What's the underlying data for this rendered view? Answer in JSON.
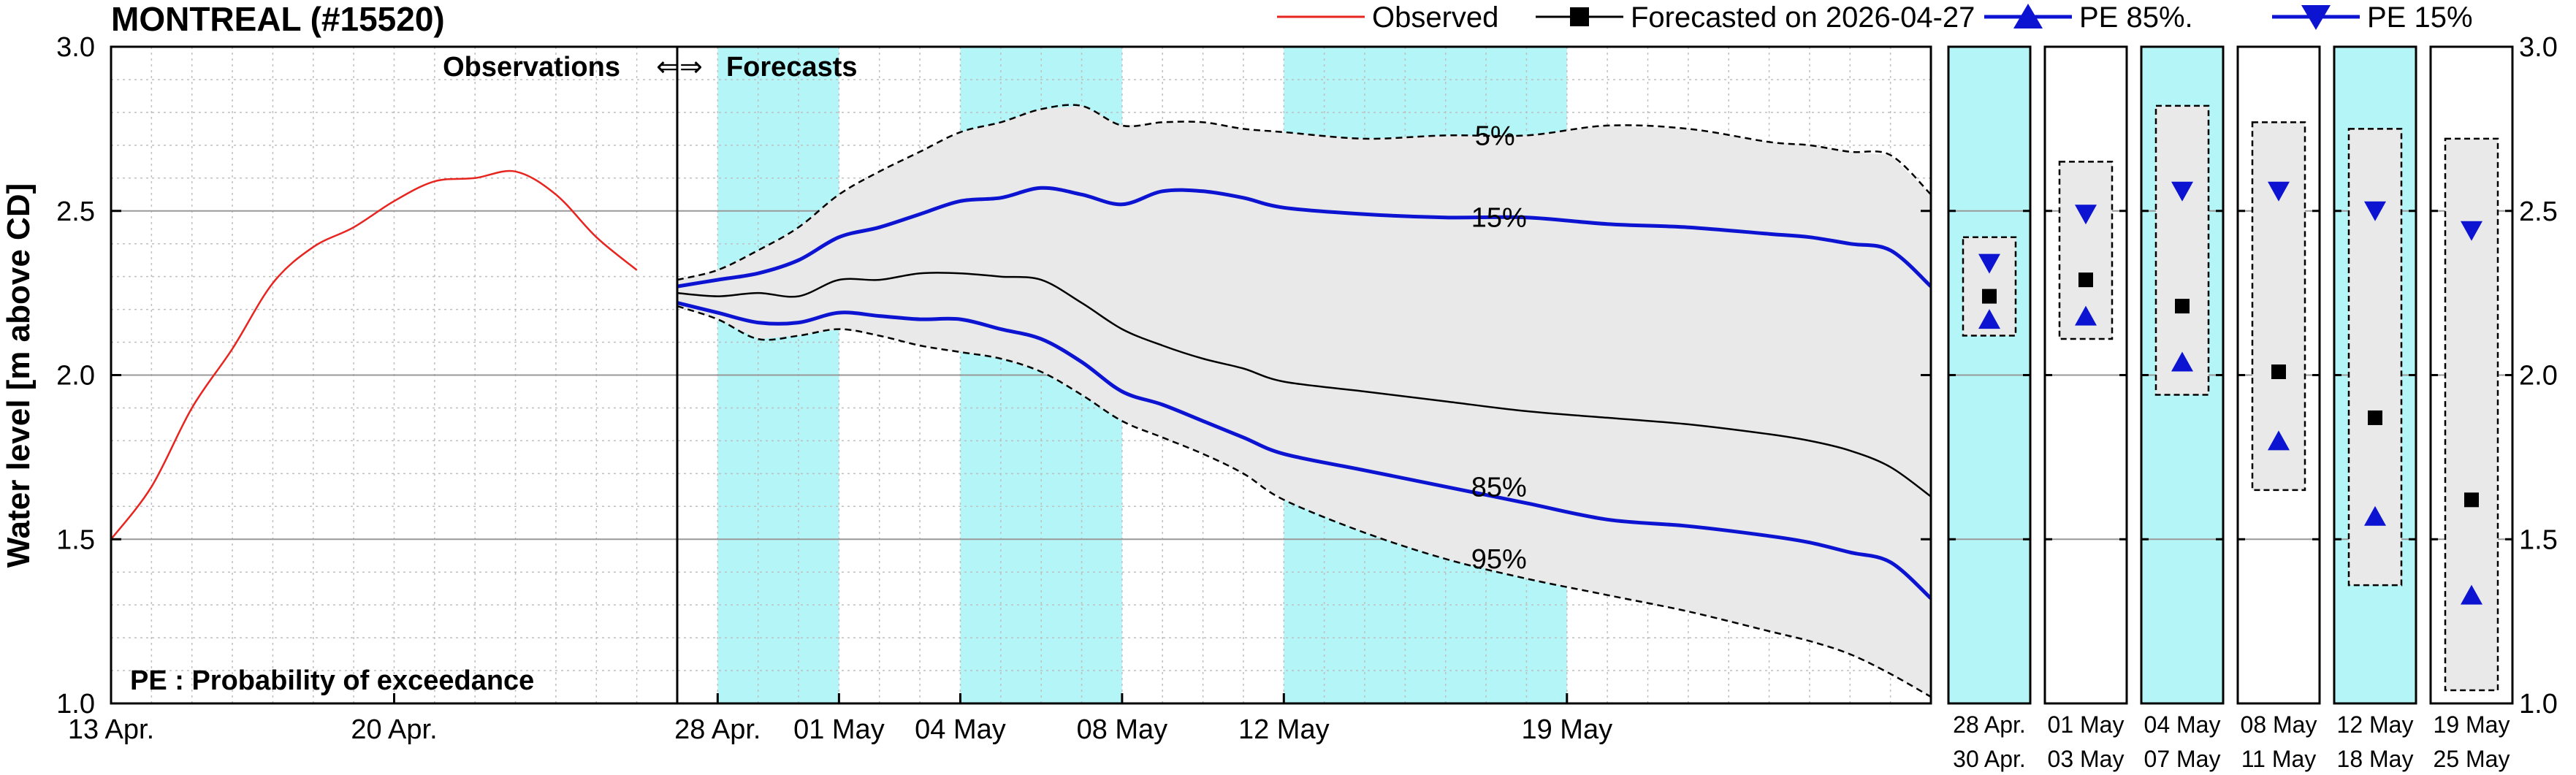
{
  "chart_data": {
    "type": "line",
    "title": "MONTREAL (#15520)",
    "ylabel": "Water level [m above CD]",
    "ylim": [
      1.0,
      3.0
    ],
    "yticks": [
      "1.0",
      "1.5",
      "2.0",
      "2.5",
      "3.0"
    ],
    "xlim": [
      "2026-04-13",
      "2026-05-28"
    ],
    "obs_xticks": [
      {
        "date": "2026-04-13",
        "label": "13 Apr."
      },
      {
        "date": "2026-04-20",
        "label": "20 Apr."
      }
    ],
    "fc_xticks": [
      {
        "date": "2026-04-28",
        "label": "28 Apr."
      },
      {
        "date": "2026-05-01",
        "label": "01 May"
      },
      {
        "date": "2026-05-04",
        "label": "04 May"
      },
      {
        "date": "2026-05-08",
        "label": "08 May"
      },
      {
        "date": "2026-05-12",
        "label": "12 May"
      },
      {
        "date": "2026-05-19",
        "label": "19 May"
      }
    ],
    "divider_date": "2026-04-27",
    "divider_label_left": "Observations",
    "divider_arrows": "⇐⇒",
    "divider_label_right": "Forecasts",
    "note": "PE : Probability of exceedance",
    "shaded_periods": [
      [
        "2026-04-28",
        "2026-04-30"
      ],
      [
        "2026-05-04",
        "2026-05-07"
      ],
      [
        "2026-05-12",
        "2026-05-18"
      ]
    ],
    "legend": [
      {
        "label": "Observed",
        "color": "#e8241f",
        "marker": "none"
      },
      {
        "label": "Forecasted on 2026-04-27",
        "color": "#000000",
        "marker": "square"
      },
      {
        "label": "PE 85%.",
        "color": "#0c14d2",
        "marker": "triangle-up"
      },
      {
        "label": "PE 15%",
        "color": "#0c14d2",
        "marker": "triangle-down"
      }
    ],
    "series": [
      {
        "name": "Observed",
        "color": "#e8241f",
        "x": [
          "2026-04-13",
          "2026-04-14",
          "2026-04-15",
          "2026-04-16",
          "2026-04-17",
          "2026-04-18",
          "2026-04-19",
          "2026-04-20",
          "2026-04-21",
          "2026-04-22",
          "2026-04-23",
          "2026-04-24",
          "2026-04-25",
          "2026-04-26"
        ],
        "y": [
          1.5,
          1.66,
          1.9,
          2.08,
          2.28,
          2.39,
          2.45,
          2.53,
          2.59,
          2.6,
          2.62,
          2.55,
          2.42,
          2.32
        ]
      },
      {
        "name": "Forecasted on 2026-04-27",
        "color": "#000000",
        "x": [
          "2026-04-27",
          "2026-04-28",
          "2026-04-29",
          "2026-04-30",
          "2026-05-01",
          "2026-05-02",
          "2026-05-03",
          "2026-05-04",
          "2026-05-05",
          "2026-05-06",
          "2026-05-07",
          "2026-05-08",
          "2026-05-09",
          "2026-05-10",
          "2026-05-11",
          "2026-05-12",
          "2026-05-14",
          "2026-05-16",
          "2026-05-18",
          "2026-05-20",
          "2026-05-22",
          "2026-05-24",
          "2026-05-25",
          "2026-05-26",
          "2026-05-27",
          "2026-05-28"
        ],
        "y": [
          2.25,
          2.24,
          2.25,
          2.24,
          2.29,
          2.29,
          2.31,
          2.31,
          2.3,
          2.29,
          2.22,
          2.14,
          2.09,
          2.05,
          2.02,
          1.98,
          1.95,
          1.92,
          1.89,
          1.87,
          1.85,
          1.82,
          1.8,
          1.77,
          1.72,
          1.63
        ]
      },
      {
        "name": "PE 15%",
        "color": "#0c14d2",
        "label": "15%",
        "x": [
          "2026-04-27",
          "2026-04-28",
          "2026-04-29",
          "2026-04-30",
          "2026-05-01",
          "2026-05-02",
          "2026-05-03",
          "2026-05-04",
          "2026-05-05",
          "2026-05-06",
          "2026-05-07",
          "2026-05-08",
          "2026-05-09",
          "2026-05-10",
          "2026-05-11",
          "2026-05-12",
          "2026-05-14",
          "2026-05-16",
          "2026-05-18",
          "2026-05-20",
          "2026-05-22",
          "2026-05-24",
          "2026-05-25",
          "2026-05-26",
          "2026-05-27",
          "2026-05-28"
        ],
        "y": [
          2.27,
          2.29,
          2.31,
          2.35,
          2.42,
          2.45,
          2.49,
          2.53,
          2.54,
          2.57,
          2.55,
          2.52,
          2.56,
          2.56,
          2.54,
          2.51,
          2.49,
          2.48,
          2.48,
          2.46,
          2.45,
          2.43,
          2.42,
          2.4,
          2.38,
          2.27
        ]
      },
      {
        "name": "PE 85%",
        "color": "#0c14d2",
        "label": "85%",
        "x": [
          "2026-04-27",
          "2026-04-28",
          "2026-04-29",
          "2026-04-30",
          "2026-05-01",
          "2026-05-02",
          "2026-05-03",
          "2026-05-04",
          "2026-05-05",
          "2026-05-06",
          "2026-05-07",
          "2026-05-08",
          "2026-05-09",
          "2026-05-10",
          "2026-05-11",
          "2026-05-12",
          "2026-05-14",
          "2026-05-16",
          "2026-05-18",
          "2026-05-20",
          "2026-05-22",
          "2026-05-24",
          "2026-05-25",
          "2026-05-26",
          "2026-05-27",
          "2026-05-28"
        ],
        "y": [
          2.22,
          2.19,
          2.16,
          2.16,
          2.19,
          2.18,
          2.17,
          2.17,
          2.14,
          2.11,
          2.04,
          1.95,
          1.91,
          1.86,
          1.81,
          1.76,
          1.71,
          1.66,
          1.61,
          1.56,
          1.54,
          1.51,
          1.49,
          1.46,
          1.43,
          1.32
        ]
      },
      {
        "name": "PE 5%",
        "color": "#000000",
        "dashed": true,
        "label": "5%",
        "x": [
          "2026-04-27",
          "2026-04-28",
          "2026-04-29",
          "2026-04-30",
          "2026-05-01",
          "2026-05-02",
          "2026-05-03",
          "2026-05-04",
          "2026-05-05",
          "2026-05-06",
          "2026-05-07",
          "2026-05-08",
          "2026-05-09",
          "2026-05-10",
          "2026-05-11",
          "2026-05-12",
          "2026-05-14",
          "2026-05-16",
          "2026-05-18",
          "2026-05-20",
          "2026-05-22",
          "2026-05-24",
          "2026-05-25",
          "2026-05-26",
          "2026-05-27",
          "2026-05-28"
        ],
        "y": [
          2.29,
          2.32,
          2.38,
          2.45,
          2.55,
          2.62,
          2.68,
          2.74,
          2.77,
          2.81,
          2.82,
          2.76,
          2.77,
          2.77,
          2.75,
          2.74,
          2.72,
          2.73,
          2.73,
          2.76,
          2.75,
          2.71,
          2.7,
          2.68,
          2.67,
          2.55
        ]
      },
      {
        "name": "PE 95%",
        "color": "#000000",
        "dashed": true,
        "label": "95%",
        "x": [
          "2026-04-27",
          "2026-04-28",
          "2026-04-29",
          "2026-04-30",
          "2026-05-01",
          "2026-05-02",
          "2026-05-03",
          "2026-05-04",
          "2026-05-05",
          "2026-05-06",
          "2026-05-07",
          "2026-05-08",
          "2026-05-09",
          "2026-05-10",
          "2026-05-11",
          "2026-05-12",
          "2026-05-14",
          "2026-05-16",
          "2026-05-18",
          "2026-05-20",
          "2026-05-22",
          "2026-05-24",
          "2026-05-25",
          "2026-05-26",
          "2026-05-27",
          "2026-05-28"
        ],
        "y": [
          2.21,
          2.17,
          2.11,
          2.12,
          2.14,
          2.12,
          2.09,
          2.07,
          2.05,
          2.01,
          1.94,
          1.86,
          1.81,
          1.76,
          1.7,
          1.62,
          1.52,
          1.44,
          1.38,
          1.33,
          1.28,
          1.22,
          1.19,
          1.15,
          1.09,
          1.02
        ]
      }
    ],
    "weekly_panels": [
      {
        "top": "28  Apr.",
        "bottom": "30  Apr.",
        "shaded": true,
        "pe5": 2.42,
        "pe15": 2.34,
        "forecast": 2.24,
        "pe85": 2.17,
        "pe95": 2.12
      },
      {
        "top": "01  May",
        "bottom": "03  May",
        "shaded": false,
        "pe5": 2.65,
        "pe15": 2.49,
        "forecast": 2.29,
        "pe85": 2.18,
        "pe95": 2.11
      },
      {
        "top": "04  May",
        "bottom": "07  May",
        "shaded": true,
        "pe5": 2.82,
        "pe15": 2.56,
        "forecast": 2.21,
        "pe85": 2.04,
        "pe95": 1.94
      },
      {
        "top": "08  May",
        "bottom": "11  May",
        "shaded": false,
        "pe5": 2.77,
        "pe15": 2.56,
        "forecast": 2.01,
        "pe85": 1.8,
        "pe95": 1.65
      },
      {
        "top": "12  May",
        "bottom": "18  May",
        "shaded": true,
        "pe5": 2.75,
        "pe15": 2.5,
        "forecast": 1.87,
        "pe85": 1.57,
        "pe95": 1.36
      },
      {
        "top": "19  May",
        "bottom": "25  May",
        "shaded": false,
        "pe5": 2.72,
        "pe15": 2.44,
        "forecast": 1.62,
        "pe85": 1.33,
        "pe95": 1.04
      }
    ],
    "colors": {
      "shade": "#b4f5f7",
      "band": "#e9e9e9",
      "grid": "#bfbfbf",
      "blue": "#0c14d2",
      "red": "#e8241f"
    }
  }
}
